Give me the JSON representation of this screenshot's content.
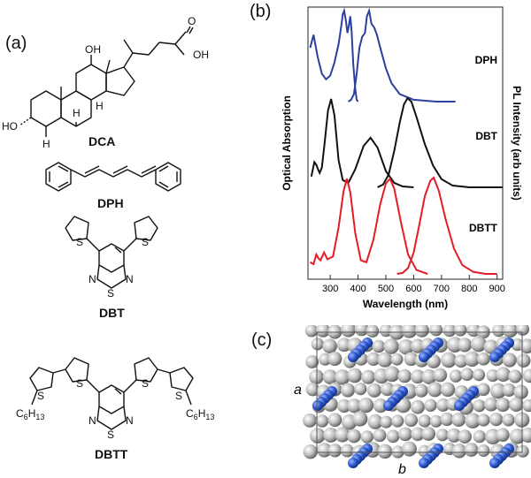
{
  "panels": {
    "a": "(a)",
    "b": "(b)",
    "c": "(c)"
  },
  "molecules": {
    "dca": "DCA",
    "dph": "DPH",
    "dbt": "DBT",
    "dbtt": "DBTT",
    "atoms": {
      "oh1": "OH",
      "oh2": "OH",
      "ho": "HO",
      "o": "O",
      "h1": "H",
      "h2": "H",
      "h3": "H",
      "s": "S",
      "n": "N",
      "hexyl_c": "C",
      "hexyl_6": "6",
      "hexyl_h": "H",
      "hexyl_13": "13"
    }
  },
  "chart_data": {
    "type": "line",
    "xlabel": "Wavelength (nm)",
    "ylabel_left": "Optical Absorption",
    "ylabel_right": "PL Intensity (arb units)",
    "xlim": [
      220,
      920
    ],
    "xticks": [
      300,
      400,
      500,
      600,
      700,
      800,
      900
    ],
    "series": [
      {
        "name": "DPH",
        "color": "#2b3f9e",
        "absorption": [
          [
            228,
            0.58
          ],
          [
            240,
            0.72
          ],
          [
            255,
            0.48
          ],
          [
            270,
            0.3
          ],
          [
            285,
            0.24
          ],
          [
            300,
            0.28
          ],
          [
            315,
            0.42
          ],
          [
            330,
            0.62
          ],
          [
            340,
            0.82
          ],
          [
            345,
            0.94
          ],
          [
            350,
            0.98
          ],
          [
            356,
            0.88
          ],
          [
            362,
            0.74
          ],
          [
            367,
            0.82
          ],
          [
            372,
            0.92
          ],
          [
            377,
            0.76
          ],
          [
            383,
            0.4
          ],
          [
            390,
            0.14
          ],
          [
            395,
            0.02
          ],
          [
            400,
            0.0
          ]
        ],
        "emission": [
          [
            365,
            0.0
          ],
          [
            375,
            0.02
          ],
          [
            385,
            0.08
          ],
          [
            395,
            0.3
          ],
          [
            405,
            0.58
          ],
          [
            415,
            0.7
          ],
          [
            425,
            0.74
          ],
          [
            432,
            0.92
          ],
          [
            440,
            0.98
          ],
          [
            448,
            0.84
          ],
          [
            458,
            0.8
          ],
          [
            468,
            0.72
          ],
          [
            480,
            0.58
          ],
          [
            500,
            0.36
          ],
          [
            520,
            0.2
          ],
          [
            550,
            0.08
          ],
          [
            600,
            0.02
          ],
          [
            680,
            0.0
          ],
          [
            750,
            0.0
          ]
        ]
      },
      {
        "name": "DBT",
        "color": "#111111",
        "absorption": [
          [
            232,
            0.12
          ],
          [
            243,
            0.28
          ],
          [
            250,
            0.25
          ],
          [
            256,
            0.2
          ],
          [
            262,
            0.16
          ],
          [
            270,
            0.22
          ],
          [
            280,
            0.5
          ],
          [
            292,
            0.85
          ],
          [
            303,
            0.98
          ],
          [
            315,
            0.8
          ],
          [
            330,
            0.3
          ],
          [
            345,
            0.08
          ],
          [
            365,
            0.05
          ],
          [
            390,
            0.2
          ],
          [
            420,
            0.46
          ],
          [
            445,
            0.55
          ],
          [
            470,
            0.44
          ],
          [
            500,
            0.18
          ],
          [
            530,
            0.05
          ],
          [
            560,
            0.01
          ],
          [
            600,
            0.0
          ]
        ],
        "emission": [
          [
            470,
            0.0
          ],
          [
            490,
            0.03
          ],
          [
            510,
            0.14
          ],
          [
            530,
            0.4
          ],
          [
            550,
            0.72
          ],
          [
            565,
            0.92
          ],
          [
            578,
            0.99
          ],
          [
            592,
            0.95
          ],
          [
            610,
            0.78
          ],
          [
            640,
            0.48
          ],
          [
            670,
            0.24
          ],
          [
            700,
            0.09
          ],
          [
            740,
            0.02
          ],
          [
            800,
            0.0
          ],
          [
            920,
            0.0
          ]
        ]
      },
      {
        "name": "DBTT",
        "color": "#e51c23",
        "absorption": [
          [
            228,
            0.12
          ],
          [
            240,
            0.1
          ],
          [
            250,
            0.2
          ],
          [
            258,
            0.16
          ],
          [
            265,
            0.14
          ],
          [
            278,
            0.22
          ],
          [
            290,
            0.15
          ],
          [
            310,
            0.18
          ],
          [
            330,
            0.48
          ],
          [
            348,
            0.85
          ],
          [
            360,
            0.98
          ],
          [
            372,
            0.84
          ],
          [
            390,
            0.42
          ],
          [
            410,
            0.14
          ],
          [
            430,
            0.12
          ],
          [
            455,
            0.35
          ],
          [
            480,
            0.72
          ],
          [
            500,
            0.93
          ],
          [
            515,
            0.98
          ],
          [
            530,
            0.88
          ],
          [
            555,
            0.52
          ],
          [
            580,
            0.2
          ],
          [
            610,
            0.04
          ],
          [
            650,
            0.0
          ]
        ],
        "emission": [
          [
            540,
            0.0
          ],
          [
            560,
            0.01
          ],
          [
            580,
            0.06
          ],
          [
            600,
            0.22
          ],
          [
            620,
            0.5
          ],
          [
            640,
            0.8
          ],
          [
            660,
            0.96
          ],
          [
            672,
            0.99
          ],
          [
            690,
            0.86
          ],
          [
            715,
            0.56
          ],
          [
            745,
            0.26
          ],
          [
            775,
            0.09
          ],
          [
            815,
            0.02
          ],
          [
            860,
            0.0
          ],
          [
            900,
            0.0
          ]
        ]
      }
    ]
  },
  "crystal": {
    "axis_a": "a",
    "axis_b": "b"
  }
}
